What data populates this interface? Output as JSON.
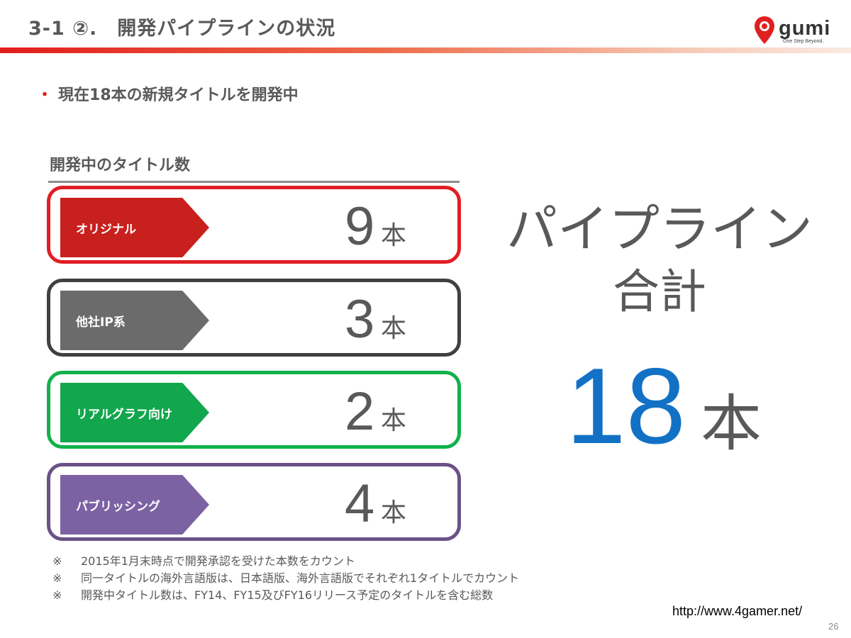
{
  "header": {
    "title": "3-1 ②.　開発パイプラインの状況",
    "logo_text": "gumi",
    "logo_tagline": "One Step Beyond."
  },
  "bullet": {
    "marker": "・",
    "text": "現在18本の新規タイトルを開発中"
  },
  "section": {
    "heading": "開発中のタイトル数"
  },
  "categories": [
    {
      "label": "オリジナル",
      "count": "9",
      "unit": "本",
      "color": "#c8201d"
    },
    {
      "label": "他社IP系",
      "count": "3",
      "unit": "本",
      "color": "#6b6b6b"
    },
    {
      "label": "リアルグラフ向け",
      "count": "2",
      "unit": "本",
      "color": "#12a64d"
    },
    {
      "label": "パブリッシング",
      "count": "4",
      "unit": "本",
      "color": "#7b62a3"
    }
  ],
  "border_colors": [
    "#e01e24",
    "#404040",
    "#12b14b",
    "#6a5287"
  ],
  "total": {
    "label_line1": "パイプライン",
    "label_line2": "合計",
    "count": "18",
    "unit": "本",
    "count_color": "#1271c5"
  },
  "notes": {
    "mark": "※",
    "items": [
      "2015年1月末時点で開発承認を受けた本数をカウント",
      "同一タイトルの海外言語版は、日本語版、海外言語版でそれぞれ1タイトルでカウント",
      "開発中タイトル数は、FY14、FY15及びFY16リリース予定のタイトルを含む総数"
    ]
  },
  "footer": {
    "source": "http://www.4gamer.net/",
    "page_number": "26"
  }
}
